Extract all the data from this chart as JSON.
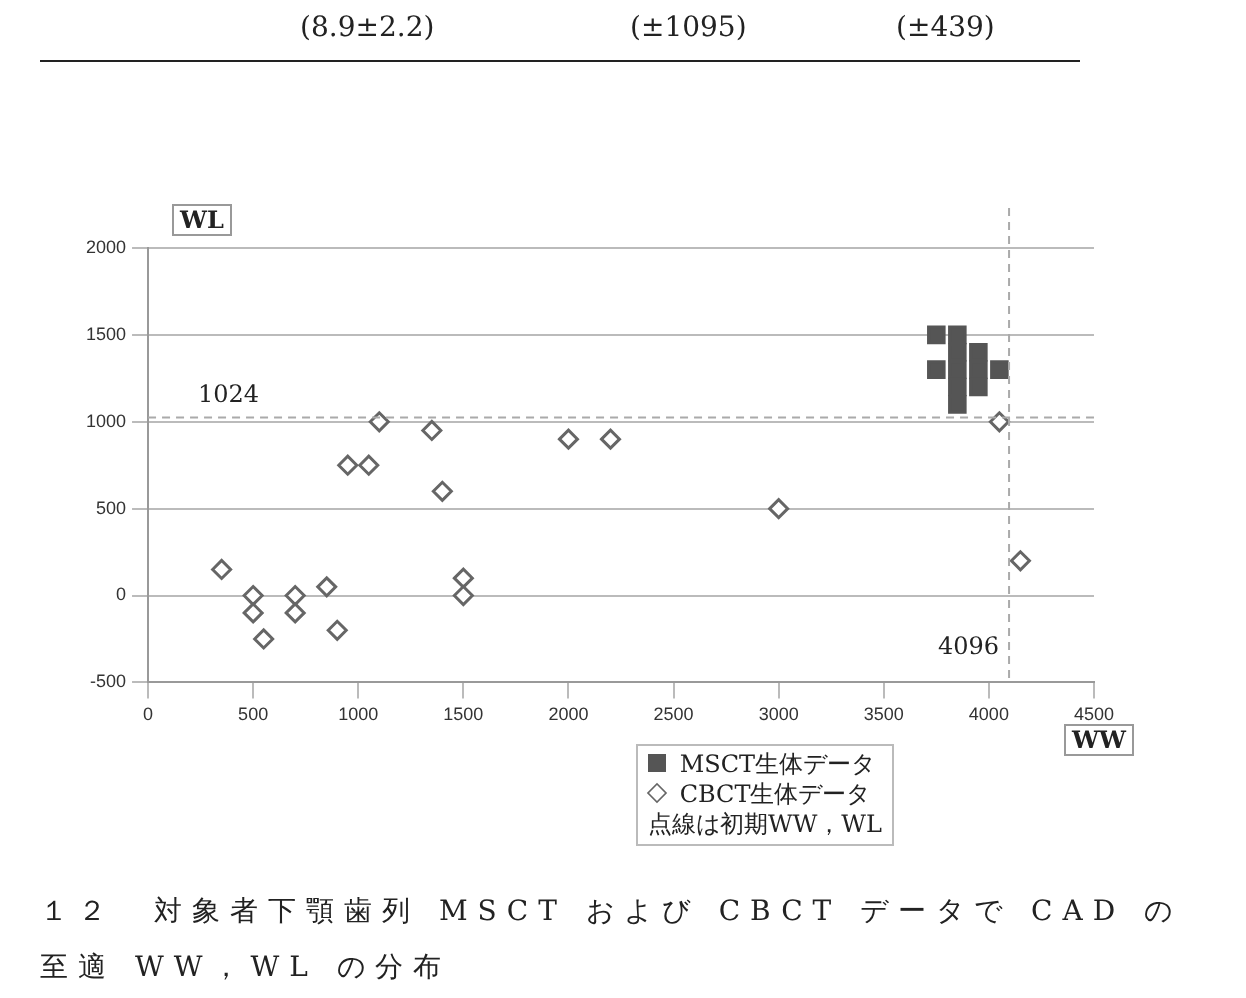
{
  "chart_data": {
    "type": "scatter",
    "title": "１２　対象者下顎歯列 MSCT および CBCT データで CAD の至適 WW，WL の分布",
    "xlabel": "WW",
    "ylabel": "WL",
    "annotations": [
      "(8.9±2.2)",
      "(±1095)",
      "(±439)",
      "点線は初期WW，WL"
    ],
    "xlim": [
      0,
      4500
    ],
    "xticks": [
      0,
      500,
      1000,
      1500,
      2000,
      2500,
      3000,
      3500,
      4000,
      4500
    ],
    "ylim": [
      -500,
      2000
    ],
    "yticks": [
      -500,
      0,
      500,
      1000,
      1500,
      2000
    ],
    "grid": "y",
    "legend": "bottom",
    "ref_lines": [
      {
        "axis": "y",
        "value": 1024,
        "label": "1024",
        "line_style": "dashed",
        "color": "#aaaaaa"
      },
      {
        "axis": "x",
        "value": 4096,
        "label": "4096",
        "line_style": "dashed",
        "color": "#aaaaaa"
      }
    ],
    "series": [
      {
        "name": "MSCT生体データ",
        "color": "#555555",
        "marker": "square",
        "x": [
          3750,
          3850,
          3850,
          3950,
          3750,
          3850,
          3950,
          4050,
          3850,
          3950,
          3850
        ],
        "values": [
          1500,
          1500,
          1400,
          1400,
          1300,
          1300,
          1300,
          1300,
          1200,
          1200,
          1100
        ]
      },
      {
        "name": "CBCT生体データ",
        "color": "#666666",
        "marker": "diamond",
        "x": [
          350,
          500,
          500,
          550,
          700,
          700,
          850,
          900,
          950,
          1050,
          1100,
          1350,
          1400,
          1500,
          1500,
          2000,
          2200,
          3000,
          4050,
          4150
        ],
        "values": [
          150,
          0,
          -100,
          -250,
          0,
          -100,
          50,
          -200,
          750,
          750,
          1000,
          950,
          600,
          100,
          0,
          900,
          900,
          500,
          1000,
          200
        ]
      }
    ]
  }
}
